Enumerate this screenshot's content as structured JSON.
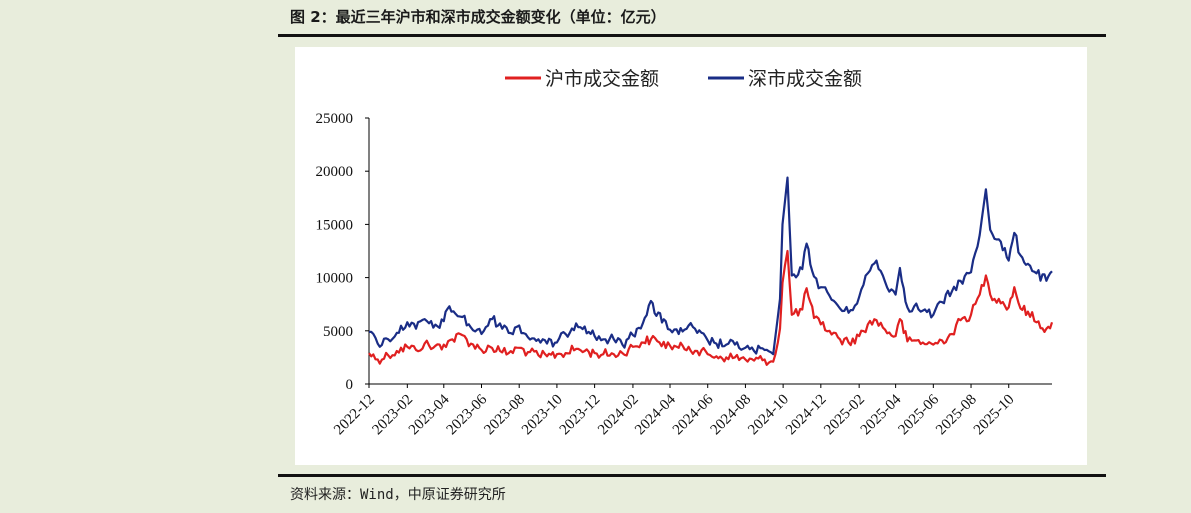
{
  "figure": {
    "title": "图 2：最近三年沪市和深市成交金额变化（单位：亿元）",
    "source": "资料来源：Wind，中原证券研究所"
  },
  "chart_data": {
    "type": "line",
    "ylim": [
      0,
      25000
    ],
    "yticks": [
      "0",
      "5000",
      "10000",
      "15000",
      "20000",
      "25000"
    ],
    "xticks": [
      "2022-12",
      "2023-02",
      "2023-04",
      "2023-06",
      "2023-08",
      "2023-10",
      "2023-12",
      "2024-02",
      "2024-04",
      "2024-06",
      "2024-08",
      "2024-10",
      "2024-12",
      "2025-02",
      "2025-04",
      "2025-06",
      "2025-08",
      "2025-10"
    ],
    "x_start": "2022-12-01",
    "x_end": "2025-12-10",
    "legend_position": "top-center",
    "series": [
      {
        "name": "沪市成交金额",
        "color": "#e02020",
        "points": [
          [
            "2022-12-01",
            2900
          ],
          [
            "2022-12-15",
            2300
          ],
          [
            "2023-01-01",
            2700
          ],
          [
            "2023-01-15",
            3100
          ],
          [
            "2023-02-01",
            3500
          ],
          [
            "2023-02-15",
            3200
          ],
          [
            "2023-03-01",
            3800
          ],
          [
            "2023-03-15",
            3400
          ],
          [
            "2023-04-01",
            3700
          ],
          [
            "2023-04-15",
            4200
          ],
          [
            "2023-05-01",
            4600
          ],
          [
            "2023-05-15",
            3800
          ],
          [
            "2023-06-01",
            3200
          ],
          [
            "2023-06-15",
            3500
          ],
          [
            "2023-07-01",
            3100
          ],
          [
            "2023-07-15",
            2900
          ],
          [
            "2023-08-01",
            3400
          ],
          [
            "2023-08-15",
            3000
          ],
          [
            "2023-09-01",
            2700
          ],
          [
            "2023-09-15",
            2600
          ],
          [
            "2023-10-01",
            2800
          ],
          [
            "2023-10-15",
            2900
          ],
          [
            "2023-11-01",
            3300
          ],
          [
            "2023-11-15",
            3100
          ],
          [
            "2023-12-01",
            2900
          ],
          [
            "2023-12-15",
            2800
          ],
          [
            "2024-01-01",
            2800
          ],
          [
            "2024-01-15",
            2900
          ],
          [
            "2024-02-01",
            3500
          ],
          [
            "2024-02-15",
            3900
          ],
          [
            "2024-03-01",
            4200
          ],
          [
            "2024-03-15",
            3900
          ],
          [
            "2024-04-01",
            3600
          ],
          [
            "2024-04-15",
            3400
          ],
          [
            "2024-05-01",
            3500
          ],
          [
            "2024-05-15",
            3100
          ],
          [
            "2024-06-01",
            2800
          ],
          [
            "2024-06-15",
            2600
          ],
          [
            "2024-07-01",
            2500
          ],
          [
            "2024-07-15",
            2500
          ],
          [
            "2024-08-01",
            2300
          ],
          [
            "2024-08-15",
            2200
          ],
          [
            "2024-09-01",
            2300
          ],
          [
            "2024-09-15",
            2100
          ],
          [
            "2024-09-26",
            5200
          ],
          [
            "2024-09-30",
            9500
          ],
          [
            "2024-10-08",
            12500
          ],
          [
            "2024-10-15",
            6500
          ],
          [
            "2024-11-01",
            7000
          ],
          [
            "2024-11-08",
            9000
          ],
          [
            "2024-11-20",
            6200
          ],
          [
            "2024-12-01",
            5600
          ],
          [
            "2024-12-15",
            5000
          ],
          [
            "2025-01-01",
            4200
          ],
          [
            "2025-01-15",
            3900
          ],
          [
            "2025-02-01",
            4500
          ],
          [
            "2025-02-15",
            5600
          ],
          [
            "2025-03-01",
            6000
          ],
          [
            "2025-03-15",
            5100
          ],
          [
            "2025-04-01",
            4500
          ],
          [
            "2025-04-08",
            6100
          ],
          [
            "2025-04-20",
            4000
          ],
          [
            "2025-05-01",
            4100
          ],
          [
            "2025-05-15",
            3900
          ],
          [
            "2025-06-01",
            3700
          ],
          [
            "2025-06-15",
            4100
          ],
          [
            "2025-07-01",
            4700
          ],
          [
            "2025-07-15",
            6000
          ],
          [
            "2025-08-01",
            6500
          ],
          [
            "2025-08-15",
            8400
          ],
          [
            "2025-08-25",
            10200
          ],
          [
            "2025-09-01",
            8400
          ],
          [
            "2025-09-15",
            8000
          ],
          [
            "2025-10-01",
            7200
          ],
          [
            "2025-10-10",
            9100
          ],
          [
            "2025-10-20",
            7100
          ],
          [
            "2025-11-01",
            6800
          ],
          [
            "2025-11-15",
            5800
          ],
          [
            "2025-12-01",
            5200
          ],
          [
            "2025-12-10",
            5800
          ]
        ]
      },
      {
        "name": "深市成交金额",
        "color": "#1a2d86",
        "points": [
          [
            "2022-12-01",
            4900
          ],
          [
            "2022-12-15",
            3800
          ],
          [
            "2023-01-01",
            4200
          ],
          [
            "2023-01-15",
            4800
          ],
          [
            "2023-02-01",
            5800
          ],
          [
            "2023-02-15",
            5200
          ],
          [
            "2023-03-01",
            6100
          ],
          [
            "2023-03-15",
            5300
          ],
          [
            "2023-04-01",
            5900
          ],
          [
            "2023-04-10",
            7300
          ],
          [
            "2023-04-20",
            6600
          ],
          [
            "2023-05-01",
            6300
          ],
          [
            "2023-05-15",
            5300
          ],
          [
            "2023-06-01",
            4700
          ],
          [
            "2023-06-15",
            6100
          ],
          [
            "2023-07-01",
            5700
          ],
          [
            "2023-07-15",
            4800
          ],
          [
            "2023-08-01",
            5500
          ],
          [
            "2023-08-15",
            4400
          ],
          [
            "2023-09-01",
            4200
          ],
          [
            "2023-09-15",
            3800
          ],
          [
            "2023-10-01",
            3900
          ],
          [
            "2023-10-15",
            4700
          ],
          [
            "2023-11-01",
            5700
          ],
          [
            "2023-11-15",
            5400
          ],
          [
            "2023-12-01",
            4500
          ],
          [
            "2023-12-15",
            4200
          ],
          [
            "2024-01-01",
            4200
          ],
          [
            "2024-01-15",
            3700
          ],
          [
            "2024-02-01",
            4600
          ],
          [
            "2024-02-20",
            6200
          ],
          [
            "2024-03-01",
            7800
          ],
          [
            "2024-03-10",
            6400
          ],
          [
            "2024-03-25",
            5900
          ],
          [
            "2024-04-01",
            5100
          ],
          [
            "2024-04-15",
            4700
          ],
          [
            "2024-05-01",
            5500
          ],
          [
            "2024-05-15",
            4800
          ],
          [
            "2024-06-01",
            4100
          ],
          [
            "2024-06-15",
            3800
          ],
          [
            "2024-07-01",
            3700
          ],
          [
            "2024-07-15",
            3700
          ],
          [
            "2024-08-01",
            3400
          ],
          [
            "2024-08-15",
            3100
          ],
          [
            "2024-09-01",
            3200
          ],
          [
            "2024-09-15",
            2800
          ],
          [
            "2024-09-26",
            8000
          ],
          [
            "2024-09-30",
            15000
          ],
          [
            "2024-10-08",
            19400
          ],
          [
            "2024-10-15",
            10200
          ],
          [
            "2024-11-01",
            10800
          ],
          [
            "2024-11-08",
            13200
          ],
          [
            "2024-11-20",
            10100
          ],
          [
            "2024-12-01",
            9100
          ],
          [
            "2024-12-15",
            8300
          ],
          [
            "2025-01-01",
            7100
          ],
          [
            "2025-01-15",
            6700
          ],
          [
            "2025-02-01",
            8200
          ],
          [
            "2025-02-15",
            10400
          ],
          [
            "2025-03-01",
            11600
          ],
          [
            "2025-03-15",
            9600
          ],
          [
            "2025-04-01",
            8400
          ],
          [
            "2025-04-08",
            10900
          ],
          [
            "2025-04-20",
            7200
          ],
          [
            "2025-05-01",
            7300
          ],
          [
            "2025-05-15",
            6900
          ],
          [
            "2025-06-01",
            6500
          ],
          [
            "2025-06-15",
            7700
          ],
          [
            "2025-07-01",
            8700
          ],
          [
            "2025-07-15",
            9700
          ],
          [
            "2025-08-01",
            10500
          ],
          [
            "2025-08-15",
            14000
          ],
          [
            "2025-08-25",
            18300
          ],
          [
            "2025-09-01",
            14500
          ],
          [
            "2025-09-15",
            13600
          ],
          [
            "2025-10-01",
            11600
          ],
          [
            "2025-10-10",
            14200
          ],
          [
            "2025-10-20",
            12100
          ],
          [
            "2025-11-01",
            11300
          ],
          [
            "2025-11-15",
            10400
          ],
          [
            "2025-12-01",
            9700
          ],
          [
            "2025-12-10",
            10600
          ]
        ]
      }
    ]
  }
}
